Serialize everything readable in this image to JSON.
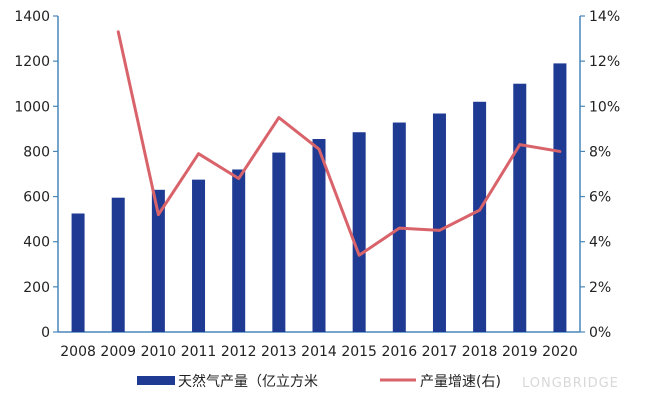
{
  "chart_data": {
    "type": "bar+line",
    "categories": [
      "2008",
      "2009",
      "2010",
      "2011",
      "2012",
      "2013",
      "2014",
      "2015",
      "2016",
      "2017",
      "2018",
      "2019",
      "2020"
    ],
    "series": [
      {
        "name": "天然气产量（亿立方米",
        "type": "bar",
        "axis": "left",
        "color": "#1f3a93",
        "values": [
          525,
          595,
          630,
          675,
          720,
          795,
          855,
          885,
          928,
          968,
          1020,
          1100,
          1190
        ]
      },
      {
        "name": "产量增速(右)",
        "type": "line",
        "axis": "right",
        "color": "#d9636a",
        "values": [
          null,
          13.3,
          5.2,
          7.9,
          6.8,
          9.5,
          8.1,
          3.4,
          4.6,
          4.5,
          5.4,
          8.3,
          8.0
        ]
      }
    ],
    "y_left": {
      "min": 0,
      "max": 1400,
      "ticks": [
        "0",
        "200",
        "400",
        "600",
        "800",
        "1000",
        "1200",
        "1400"
      ]
    },
    "y_right": {
      "min": 0,
      "max": 14,
      "ticks": [
        "0%",
        "2%",
        "4%",
        "6%",
        "8%",
        "10%",
        "12%",
        "14%"
      ]
    },
    "legend_position": "bottom",
    "axis_color": "#4a86b8"
  },
  "watermark": "LONGBRIDGE"
}
